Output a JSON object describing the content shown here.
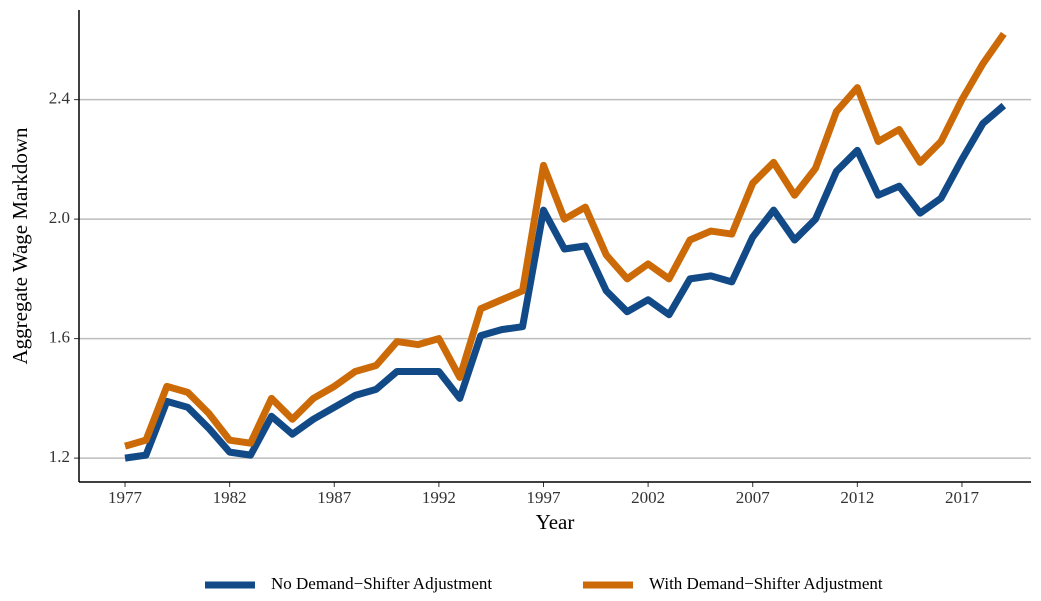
{
  "chart_data": {
    "type": "line",
    "xlabel": "Year",
    "ylabel": "Aggregate Wage Markdown",
    "x": [
      1977,
      1978,
      1979,
      1980,
      1981,
      1982,
      1983,
      1984,
      1985,
      1986,
      1987,
      1988,
      1989,
      1990,
      1991,
      1992,
      1993,
      1994,
      1995,
      1996,
      1997,
      1998,
      1999,
      2000,
      2001,
      2002,
      2003,
      2004,
      2005,
      2006,
      2007,
      2008,
      2009,
      2010,
      2011,
      2012,
      2013,
      2014,
      2015,
      2016,
      2017,
      2018,
      2019
    ],
    "series": [
      {
        "name": "No Demand−Shifter Adjustment",
        "color": "#124a87",
        "values": [
          1.2,
          1.21,
          1.39,
          1.37,
          1.3,
          1.22,
          1.21,
          1.34,
          1.28,
          1.33,
          1.37,
          1.41,
          1.43,
          1.49,
          1.49,
          1.49,
          1.4,
          1.61,
          1.63,
          1.64,
          2.03,
          1.9,
          1.91,
          1.76,
          1.69,
          1.73,
          1.68,
          1.8,
          1.81,
          1.79,
          1.94,
          2.03,
          1.93,
          2.0,
          2.16,
          2.23,
          2.08,
          2.11,
          2.02,
          2.07,
          2.2,
          2.32,
          2.38
        ]
      },
      {
        "name": "With Demand−Shifter Adjustment",
        "color": "#cc6a08",
        "values": [
          1.24,
          1.26,
          1.44,
          1.42,
          1.35,
          1.26,
          1.25,
          1.4,
          1.33,
          1.4,
          1.44,
          1.49,
          1.51,
          1.59,
          1.58,
          1.6,
          1.47,
          1.7,
          1.73,
          1.76,
          2.18,
          2.0,
          2.04,
          1.88,
          1.8,
          1.85,
          1.8,
          1.93,
          1.96,
          1.95,
          2.12,
          2.19,
          2.08,
          2.17,
          2.36,
          2.44,
          2.26,
          2.3,
          2.19,
          2.26,
          2.4,
          2.52,
          2.62
        ]
      }
    ],
    "xlim": [
      1974.8,
      2020.3
    ],
    "ylim": [
      1.12,
      2.7
    ],
    "xticks": [
      1977,
      1982,
      1987,
      1992,
      1997,
      2002,
      2007,
      2012,
      2017
    ],
    "yticks": [
      1.2,
      1.6,
      {
        "value": 2,
        "label": "2.0"
      },
      2.4
    ],
    "grid": true,
    "legend": "bottom"
  }
}
